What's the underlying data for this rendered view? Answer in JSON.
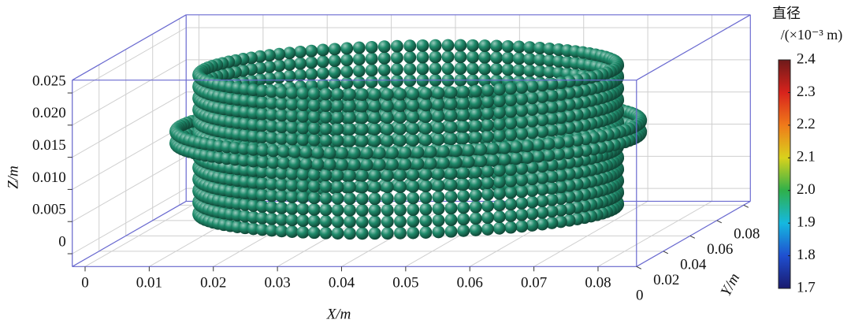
{
  "chart_data": {
    "type": "particles3d",
    "xlabel": "X/m",
    "ylabel": "Y/m",
    "zlabel": "Z/m",
    "xlim": [
      -0.002,
      0.086
    ],
    "ylim": [
      0,
      0.085
    ],
    "zlim": [
      -0.002,
      0.027
    ],
    "xticks": [
      0,
      0.01,
      0.02,
      0.03,
      0.04,
      0.05,
      0.06,
      0.07,
      0.08
    ],
    "yticks": [
      0,
      0.02,
      0.04,
      0.06,
      0.08
    ],
    "zticks": [
      0,
      0.005,
      {
        "value": 0.01,
        "label": "0.010"
      },
      0.015,
      {
        "value": 0.02,
        "label": "0.020"
      },
      0.025
    ],
    "grid": true,
    "box_color": "#6a6ad0",
    "grid_color": "#cfcfcf",
    "colorbar": {
      "title": "直径",
      "unit": "/(×10⁻³ m)",
      "lim": [
        1.7,
        2.4
      ],
      "ticks": [
        1.7,
        1.8,
        1.9,
        {
          "value": 2.0,
          "label": "2.0"
        },
        2.1,
        2.2,
        2.3,
        2.4
      ],
      "colormap": [
        "#1a1a6e",
        "#1f4fd0",
        "#15b8e0",
        "#2fb04a",
        "#d9d21c",
        "#f07a1a",
        "#d8231c",
        "#6e1a1a"
      ]
    },
    "particles": {
      "diameter": 1.95,
      "color": "#1f8c6c",
      "center": [
        0.041,
        0.045
      ],
      "rings": [
        {
          "z": 0.0016,
          "r": 0.032
        },
        {
          "z": 0.0034,
          "r": 0.032
        },
        {
          "z": 0.0052,
          "r": 0.032
        },
        {
          "z": 0.007,
          "r": 0.032
        },
        {
          "z": 0.0088,
          "r": 0.032
        },
        {
          "z": 0.0106,
          "r": 0.032
        },
        {
          "z": 0.0124,
          "r": 0.032
        },
        {
          "z": 0.0142,
          "r": 0.032
        },
        {
          "z": 0.016,
          "r": 0.032
        },
        {
          "z": 0.0178,
          "r": 0.032
        },
        {
          "z": 0.0196,
          "r": 0.032
        },
        {
          "z": 0.0214,
          "r": 0.032
        },
        {
          "z": 0.0232,
          "r": 0.032
        },
        {
          "z": 0.0127,
          "r": 0.0355
        },
        {
          "z": 0.0145,
          "r": 0.0355
        }
      ]
    }
  }
}
